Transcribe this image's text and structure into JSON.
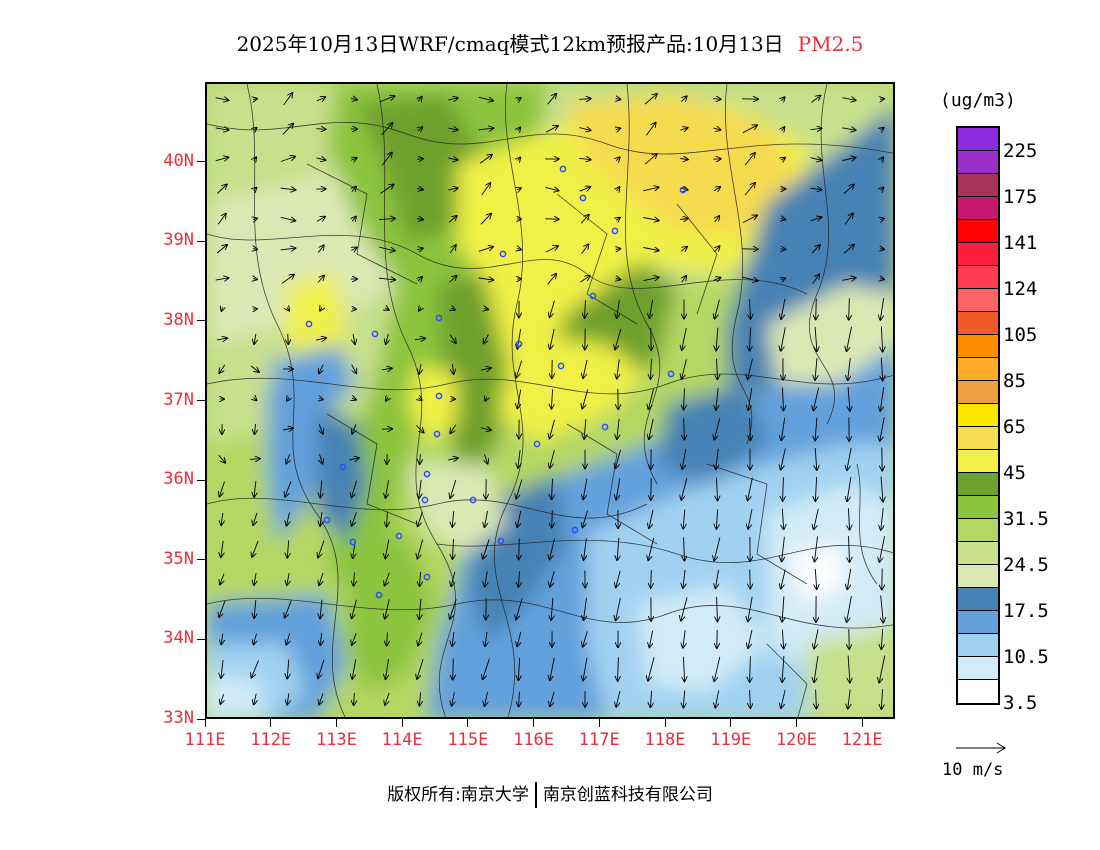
{
  "title": {
    "text": "2025年10月13日WRF/cmaq模式12km预报产品:10月13日",
    "pollutant": "PM2.5"
  },
  "map": {
    "lon_range": [
      111,
      121.5
    ],
    "lat_range": [
      33,
      41
    ],
    "lat_labels": [
      "33N",
      "34N",
      "35N",
      "36N",
      "37N",
      "38N",
      "39N",
      "40N"
    ],
    "lon_labels": [
      "111E",
      "112E",
      "113E",
      "114E",
      "115E",
      "116E",
      "117E",
      "118E",
      "119E",
      "120E",
      "121E"
    ]
  },
  "legend": {
    "unit": "(ug/m3)",
    "colors": [
      "#8a2be2",
      "#9b30c8",
      "#a8325a",
      "#c8186e",
      "#ff0000",
      "#ff1e3c",
      "#ff3c50",
      "#ff6464",
      "#f05a28",
      "#ff8c00",
      "#ffaa28",
      "#f0a040",
      "#ffe600",
      "#f5dc50",
      "#f0f046",
      "#6ea02d",
      "#8cc43c",
      "#b4d764",
      "#c8e08c",
      "#dce8b4",
      "#4682b4",
      "#64a0dc",
      "#a0d2f0",
      "#d2ebf8",
      "#ffffff"
    ],
    "labels": [
      "225",
      "175",
      "141",
      "124",
      "105",
      "85",
      "65",
      "45",
      "31.5",
      "24.5",
      "17.5",
      "10.5",
      "3.5"
    ]
  },
  "wind_reference": {
    "label": "10 m/s"
  },
  "footer": {
    "left": "版权所有:南京大学",
    "right": "南京创蓝科技有限公司"
  },
  "colors": {
    "label_red": "#e8303a",
    "city_marker": "#2850ff"
  }
}
